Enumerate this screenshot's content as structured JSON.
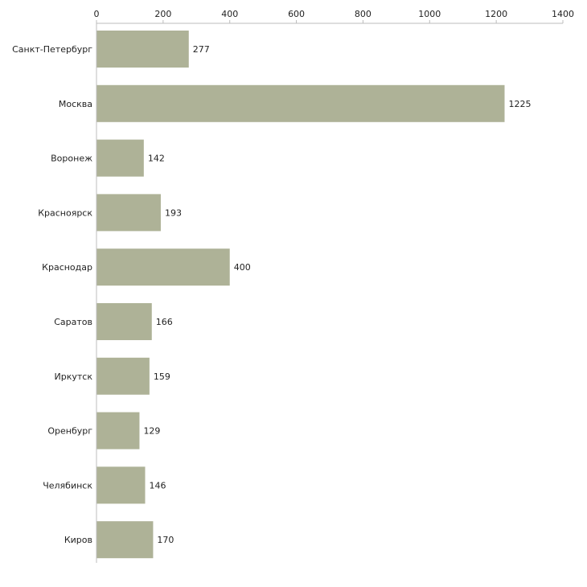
{
  "chart_data": {
    "type": "bar",
    "orientation": "horizontal",
    "title": "",
    "xlabel": "",
    "ylabel": "",
    "xlim": [
      0,
      1400
    ],
    "x_ticks": [
      0,
      200,
      400,
      600,
      800,
      1000,
      1200,
      1400
    ],
    "x_tick_labels": [
      "0",
      "200",
      "400",
      "600",
      "800",
      "1000",
      "1200",
      "1400"
    ],
    "axis_position": "top",
    "grid": false,
    "categories": [
      "Санкт-Петербург",
      "Москва",
      "Воронеж",
      "Красноярск",
      "Краснодар",
      "Саратов",
      "Иркутск",
      "Оренбург",
      "Челябинск",
      "Киров"
    ],
    "values": [
      277,
      1225,
      142,
      193,
      400,
      166,
      159,
      129,
      146,
      170
    ],
    "value_labels": [
      "277",
      "1225",
      "142",
      "193",
      "400",
      "166",
      "159",
      "129",
      "146",
      "170"
    ],
    "bar_color": "#aeb297"
  }
}
